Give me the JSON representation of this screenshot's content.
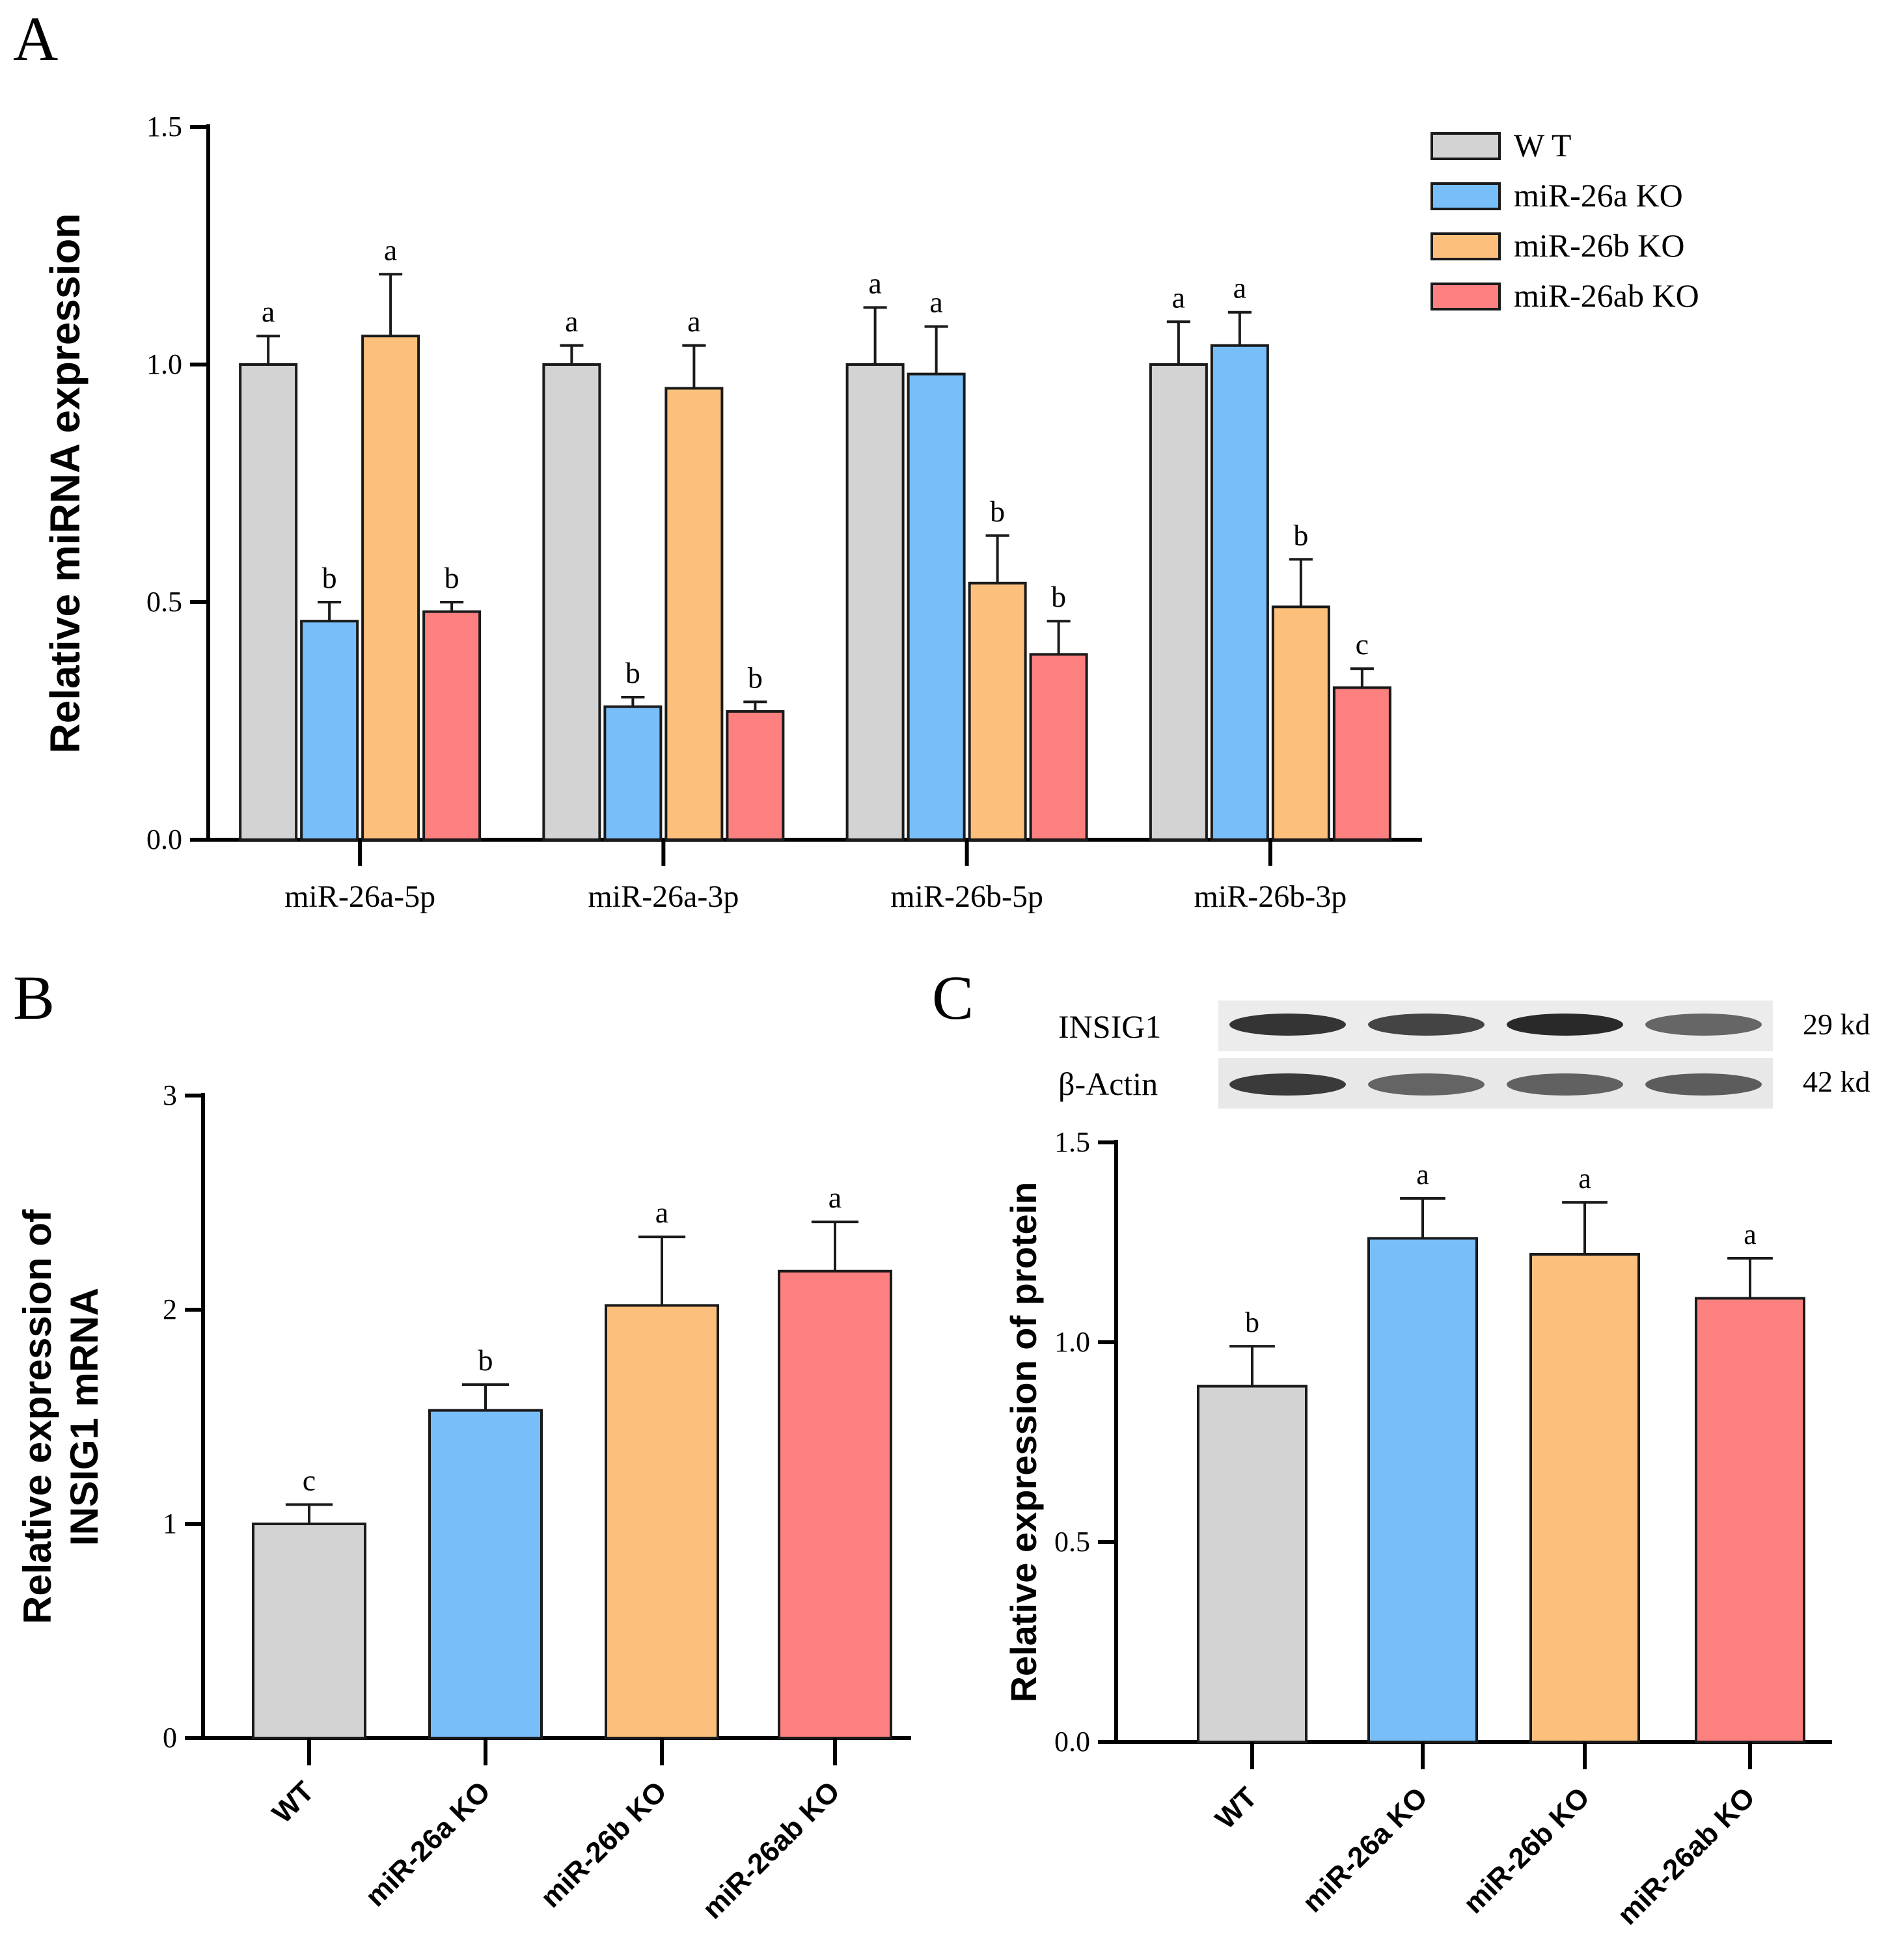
{
  "colors": {
    "WT": "#d3d3d3",
    "miR-26a KO": "#78bef9",
    "miR-26b KO": "#fcc07c",
    "miR-26ab KO": "#fd8080",
    "axis": "#000000",
    "bar_edge": "#1a1a1a"
  },
  "legend": {
    "items": [
      "W T",
      "miR-26a KO",
      "miR-26b KO",
      "miR-26ab KO"
    ]
  },
  "blot": {
    "rows": [
      {
        "label": "INSIG1",
        "size": "29 kd"
      },
      {
        "label": "β-Actin",
        "size": "42 kd"
      }
    ],
    "lanes": 4
  },
  "chart_data": [
    {
      "panel": "A",
      "type": "bar",
      "ylabel": "Relative miRNA expression",
      "xlabel": "",
      "ylim": [
        0,
        1.5
      ],
      "yticks": [
        "0.0",
        "0.5",
        "1.0",
        "1.5"
      ],
      "categories": [
        "miR-26a-5p",
        "miR-26a-3p",
        "miR-26b-5p",
        "miR-26b-3p"
      ],
      "series": [
        {
          "name": "WT",
          "values": [
            1.0,
            1.0,
            1.0,
            1.0
          ],
          "errors": [
            0.06,
            0.04,
            0.12,
            0.09
          ],
          "letters": [
            "a",
            "a",
            "a",
            "a"
          ]
        },
        {
          "name": "miR-26a KO",
          "values": [
            0.46,
            0.28,
            0.98,
            1.04
          ],
          "errors": [
            0.04,
            0.02,
            0.1,
            0.07
          ],
          "letters": [
            "b",
            "b",
            "a",
            "a"
          ]
        },
        {
          "name": "miR-26b KO",
          "values": [
            1.06,
            0.95,
            0.54,
            0.49
          ],
          "errors": [
            0.13,
            0.09,
            0.1,
            0.1
          ],
          "letters": [
            "a",
            "a",
            "b",
            "b"
          ]
        },
        {
          "name": "miR-26ab KO",
          "values": [
            0.48,
            0.27,
            0.39,
            0.32
          ],
          "errors": [
            0.02,
            0.02,
            0.07,
            0.04
          ],
          "letters": [
            "b",
            "b",
            "b",
            "c"
          ]
        }
      ]
    },
    {
      "panel": "B",
      "type": "bar",
      "ylabel": "Relative expression of INSIG1 mRNA",
      "ylabel_lines": [
        "Relative expression of",
        "INSIG1 mRNA"
      ],
      "xlabel": "",
      "ylim": [
        0,
        3
      ],
      "yticks": [
        "0",
        "1",
        "2",
        "3"
      ],
      "categories": [
        "WT",
        "miR-26a KO",
        "miR-26b KO",
        "miR-26ab KO"
      ],
      "values": [
        1.0,
        1.53,
        2.02,
        2.18
      ],
      "errors": [
        0.09,
        0.12,
        0.32,
        0.23
      ],
      "letters": [
        "c",
        "b",
        "a",
        "a"
      ]
    },
    {
      "panel": "C",
      "type": "bar",
      "ylabel": "Relative expression of protein",
      "xlabel": "",
      "ylim": [
        0,
        1.5
      ],
      "yticks": [
        "0.0",
        "0.5",
        "1.0",
        "1.5"
      ],
      "categories": [
        "WT",
        "miR-26a KO",
        "miR-26b KO",
        "miR-26ab KO"
      ],
      "values": [
        0.89,
        1.26,
        1.22,
        1.11
      ],
      "errors": [
        0.1,
        0.1,
        0.13,
        0.1
      ],
      "letters": [
        "b",
        "a",
        "a",
        "a"
      ]
    }
  ]
}
